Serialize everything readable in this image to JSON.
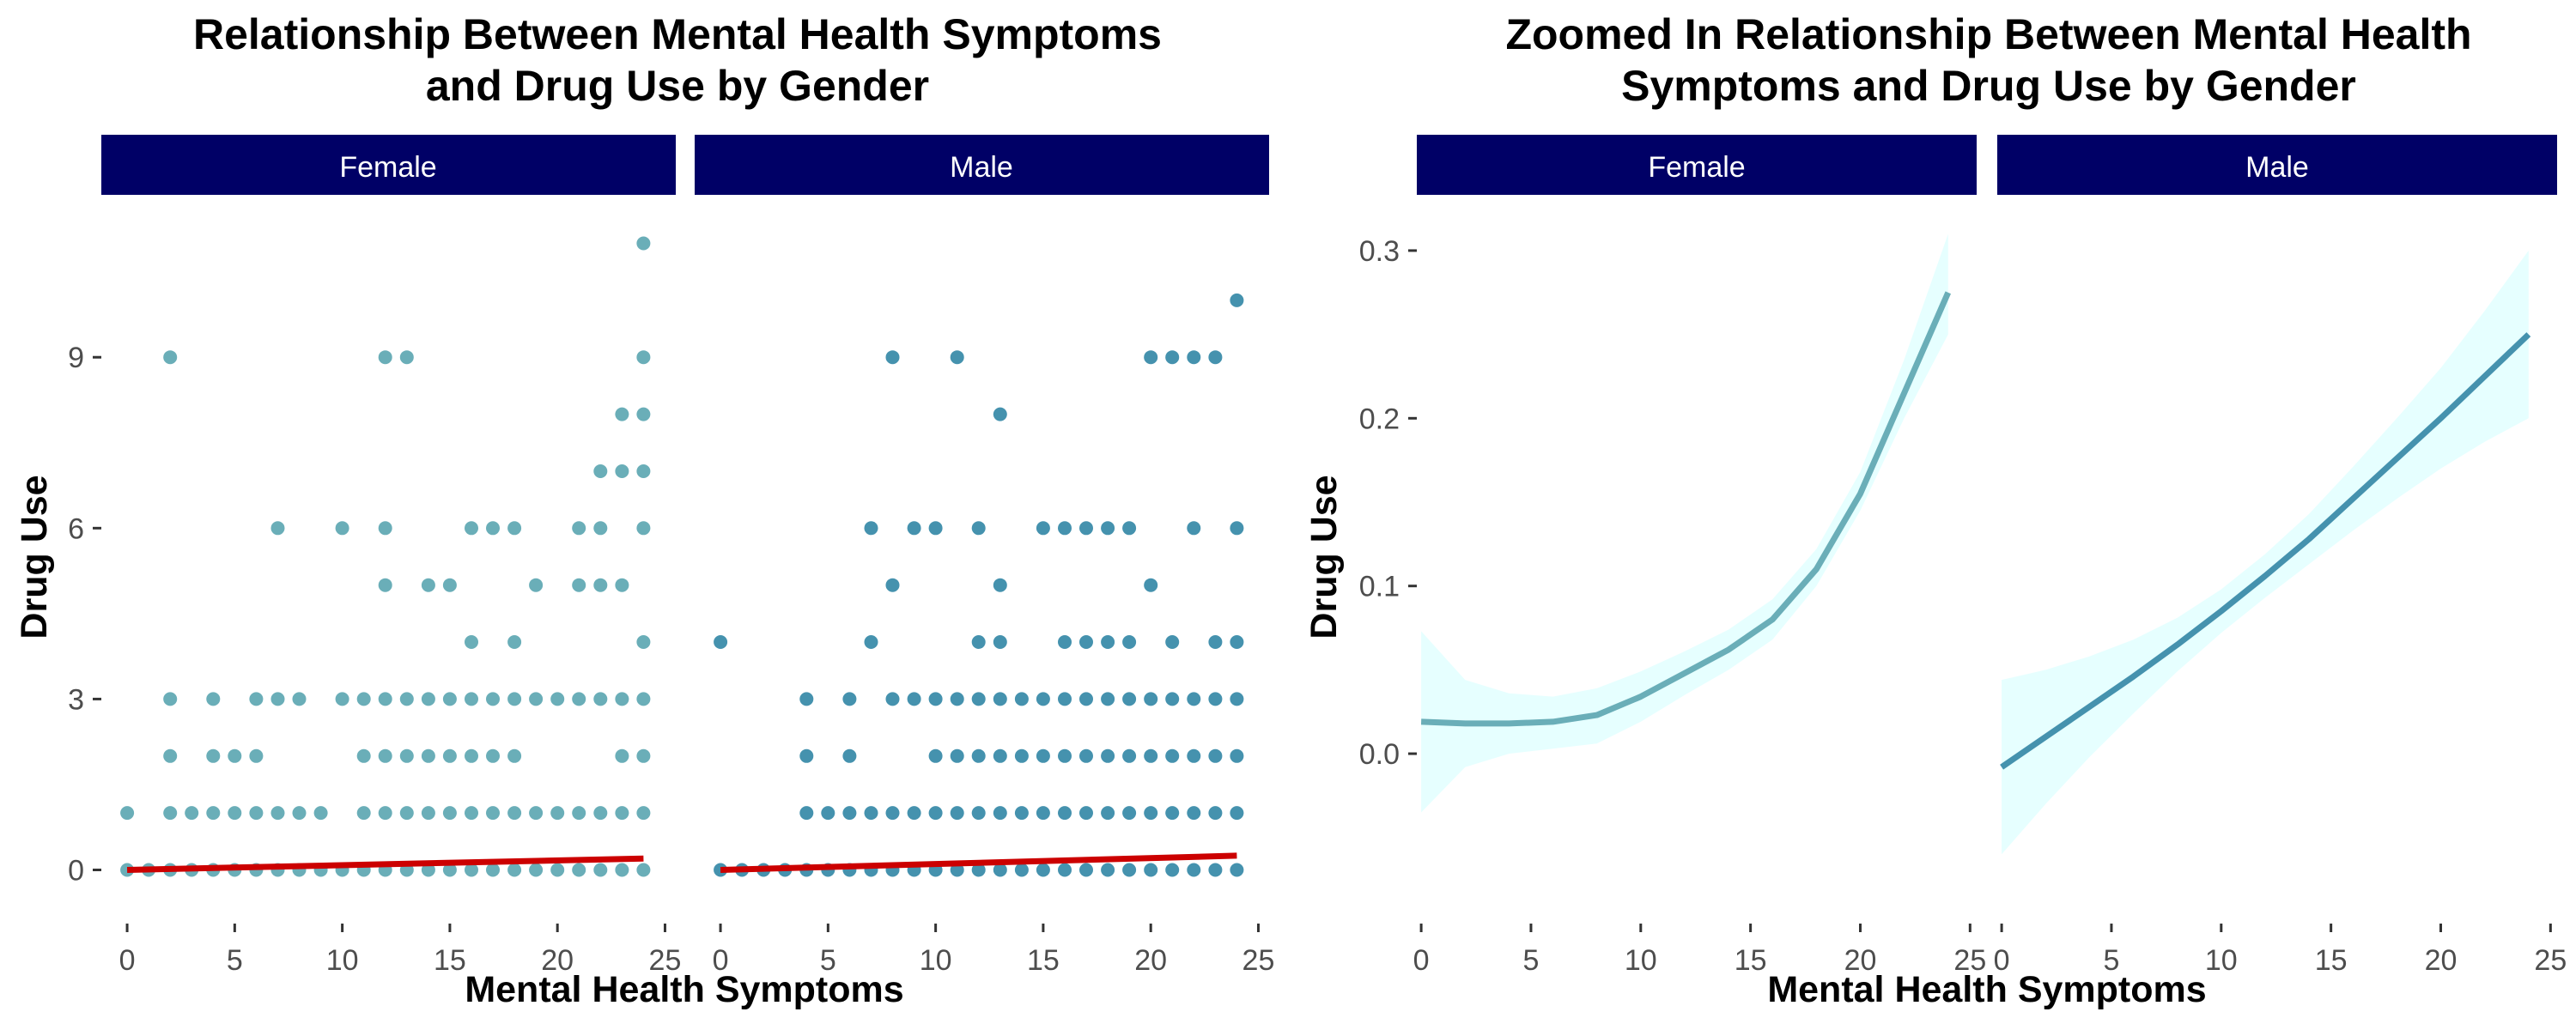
{
  "chart_data": [
    {
      "type": "scatter",
      "title_lines": [
        "Relationship Between Mental Health Symptoms",
        "and Drug Use by Gender"
      ],
      "xlabel": "Mental Health Symptoms",
      "ylabel": "Drug Use",
      "xlim": [
        -1.2,
        25.5
      ],
      "ylim": [
        -0.55,
        11.55
      ],
      "x_ticks": [
        0,
        5,
        10,
        15,
        20,
        25
      ],
      "y_ticks": [
        0,
        3,
        6,
        9
      ],
      "grid": false,
      "legend": "none",
      "facets": [
        {
          "label": "Female",
          "point_color": "#6aaeb8",
          "trend": {
            "color": "#cc0000",
            "x": [
              0,
              24
            ],
            "y": [
              0.0,
              0.2
            ]
          },
          "points": [
            [
              0,
              0
            ],
            [
              0,
              1
            ],
            [
              1,
              0
            ],
            [
              2,
              0
            ],
            [
              2,
              1
            ],
            [
              2,
              2
            ],
            [
              2,
              3
            ],
            [
              2,
              9
            ],
            [
              3,
              0
            ],
            [
              3,
              1
            ],
            [
              4,
              0
            ],
            [
              4,
              1
            ],
            [
              4,
              2
            ],
            [
              4,
              3
            ],
            [
              5,
              0
            ],
            [
              5,
              1
            ],
            [
              5,
              2
            ],
            [
              6,
              0
            ],
            [
              6,
              1
            ],
            [
              6,
              2
            ],
            [
              6,
              3
            ],
            [
              7,
              0
            ],
            [
              7,
              1
            ],
            [
              7,
              3
            ],
            [
              7,
              6
            ],
            [
              8,
              0
            ],
            [
              8,
              1
            ],
            [
              8,
              3
            ],
            [
              9,
              0
            ],
            [
              9,
              1
            ],
            [
              10,
              0
            ],
            [
              10,
              3
            ],
            [
              10,
              6
            ],
            [
              11,
              0
            ],
            [
              11,
              1
            ],
            [
              11,
              2
            ],
            [
              11,
              3
            ],
            [
              12,
              0
            ],
            [
              12,
              1
            ],
            [
              12,
              2
            ],
            [
              12,
              3
            ],
            [
              12,
              5
            ],
            [
              12,
              6
            ],
            [
              12,
              9
            ],
            [
              13,
              0
            ],
            [
              13,
              1
            ],
            [
              13,
              2
            ],
            [
              13,
              3
            ],
            [
              13,
              9
            ],
            [
              14,
              0
            ],
            [
              14,
              1
            ],
            [
              14,
              2
            ],
            [
              14,
              3
            ],
            [
              14,
              5
            ],
            [
              15,
              0
            ],
            [
              15,
              1
            ],
            [
              15,
              2
            ],
            [
              15,
              3
            ],
            [
              15,
              5
            ],
            [
              16,
              0
            ],
            [
              16,
              1
            ],
            [
              16,
              2
            ],
            [
              16,
              3
            ],
            [
              16,
              4
            ],
            [
              16,
              6
            ],
            [
              17,
              0
            ],
            [
              17,
              1
            ],
            [
              17,
              2
            ],
            [
              17,
              3
            ],
            [
              17,
              6
            ],
            [
              18,
              0
            ],
            [
              18,
              1
            ],
            [
              18,
              2
            ],
            [
              18,
              3
            ],
            [
              18,
              4
            ],
            [
              18,
              6
            ],
            [
              19,
              0
            ],
            [
              19,
              1
            ],
            [
              19,
              3
            ],
            [
              19,
              5
            ],
            [
              20,
              0
            ],
            [
              20,
              1
            ],
            [
              20,
              3
            ],
            [
              21,
              0
            ],
            [
              21,
              1
            ],
            [
              21,
              3
            ],
            [
              21,
              5
            ],
            [
              21,
              6
            ],
            [
              22,
              0
            ],
            [
              22,
              1
            ],
            [
              22,
              3
            ],
            [
              22,
              5
            ],
            [
              22,
              6
            ],
            [
              22,
              7
            ],
            [
              23,
              0
            ],
            [
              23,
              1
            ],
            [
              23,
              2
            ],
            [
              23,
              3
            ],
            [
              23,
              5
            ],
            [
              23,
              7
            ],
            [
              23,
              8
            ],
            [
              24,
              0
            ],
            [
              24,
              1
            ],
            [
              24,
              2
            ],
            [
              24,
              3
            ],
            [
              24,
              4
            ],
            [
              24,
              6
            ],
            [
              24,
              7
            ],
            [
              24,
              8
            ],
            [
              24,
              9
            ],
            [
              24,
              11
            ]
          ]
        },
        {
          "label": "Male",
          "point_color": "#4592ae",
          "trend": {
            "color": "#cc0000",
            "x": [
              0,
              24
            ],
            "y": [
              0.0,
              0.25
            ]
          },
          "points": [
            [
              0,
              0
            ],
            [
              0,
              4
            ],
            [
              1,
              0
            ],
            [
              2,
              0
            ],
            [
              3,
              0
            ],
            [
              4,
              0
            ],
            [
              4,
              1
            ],
            [
              4,
              2
            ],
            [
              4,
              3
            ],
            [
              5,
              0
            ],
            [
              5,
              1
            ],
            [
              6,
              0
            ],
            [
              6,
              1
            ],
            [
              6,
              2
            ],
            [
              6,
              3
            ],
            [
              7,
              0
            ],
            [
              7,
              1
            ],
            [
              7,
              4
            ],
            [
              7,
              6
            ],
            [
              8,
              0
            ],
            [
              8,
              1
            ],
            [
              8,
              3
            ],
            [
              8,
              5
            ],
            [
              8,
              9
            ],
            [
              9,
              0
            ],
            [
              9,
              1
            ],
            [
              9,
              3
            ],
            [
              9,
              6
            ],
            [
              10,
              0
            ],
            [
              10,
              1
            ],
            [
              10,
              2
            ],
            [
              10,
              3
            ],
            [
              10,
              6
            ],
            [
              11,
              0
            ],
            [
              11,
              1
            ],
            [
              11,
              2
            ],
            [
              11,
              3
            ],
            [
              11,
              9
            ],
            [
              12,
              0
            ],
            [
              12,
              1
            ],
            [
              12,
              2
            ],
            [
              12,
              3
            ],
            [
              12,
              4
            ],
            [
              12,
              6
            ],
            [
              13,
              0
            ],
            [
              13,
              1
            ],
            [
              13,
              2
            ],
            [
              13,
              3
            ],
            [
              13,
              4
            ],
            [
              13,
              5
            ],
            [
              13,
              8
            ],
            [
              14,
              0
            ],
            [
              14,
              1
            ],
            [
              14,
              2
            ],
            [
              14,
              3
            ],
            [
              15,
              0
            ],
            [
              15,
              1
            ],
            [
              15,
              2
            ],
            [
              15,
              3
            ],
            [
              15,
              6
            ],
            [
              16,
              0
            ],
            [
              16,
              1
            ],
            [
              16,
              2
            ],
            [
              16,
              3
            ],
            [
              16,
              4
            ],
            [
              16,
              6
            ],
            [
              17,
              0
            ],
            [
              17,
              1
            ],
            [
              17,
              2
            ],
            [
              17,
              3
            ],
            [
              17,
              4
            ],
            [
              17,
              6
            ],
            [
              18,
              0
            ],
            [
              18,
              1
            ],
            [
              18,
              2
            ],
            [
              18,
              3
            ],
            [
              18,
              4
            ],
            [
              18,
              6
            ],
            [
              19,
              0
            ],
            [
              19,
              1
            ],
            [
              19,
              2
            ],
            [
              19,
              3
            ],
            [
              19,
              4
            ],
            [
              19,
              6
            ],
            [
              20,
              0
            ],
            [
              20,
              1
            ],
            [
              20,
              2
            ],
            [
              20,
              3
            ],
            [
              20,
              5
            ],
            [
              20,
              9
            ],
            [
              21,
              0
            ],
            [
              21,
              1
            ],
            [
              21,
              2
            ],
            [
              21,
              3
            ],
            [
              21,
              4
            ],
            [
              21,
              9
            ],
            [
              22,
              0
            ],
            [
              22,
              1
            ],
            [
              22,
              2
            ],
            [
              22,
              3
            ],
            [
              22,
              6
            ],
            [
              22,
              9
            ],
            [
              23,
              0
            ],
            [
              23,
              1
            ],
            [
              23,
              2
            ],
            [
              23,
              3
            ],
            [
              23,
              4
            ],
            [
              23,
              9
            ],
            [
              24,
              0
            ],
            [
              24,
              1
            ],
            [
              24,
              2
            ],
            [
              24,
              3
            ],
            [
              24,
              4
            ],
            [
              24,
              6
            ],
            [
              24,
              10
            ]
          ]
        }
      ]
    },
    {
      "type": "line",
      "title_lines": [
        "Zoomed In Relationship Between Mental Health",
        "Symptoms and Drug Use by Gender"
      ],
      "xlabel": "Mental Health Symptoms",
      "ylabel": "Drug Use",
      "xlim": [
        -0.2,
        25.3
      ],
      "ylim": [
        -0.088,
        0.323
      ],
      "x_ticks": [
        0,
        5,
        10,
        15,
        20,
        25
      ],
      "y_ticks": [
        0.0,
        0.1,
        0.2,
        0.3
      ],
      "y_tick_labels": [
        "0.0",
        "0.1",
        "0.2",
        "0.3"
      ],
      "grid": false,
      "legend": "none",
      "ribbon_color": "#e6ffff",
      "facets": [
        {
          "label": "Female",
          "line_color": "#6aaeb8",
          "x": [
            0,
            2,
            4,
            6,
            8,
            10,
            12,
            14,
            16,
            18,
            20,
            22,
            24
          ],
          "y": [
            0.019,
            0.018,
            0.018,
            0.019,
            0.023,
            0.034,
            0.048,
            0.062,
            0.08,
            0.11,
            0.155,
            0.215,
            0.275
          ],
          "lower": [
            -0.035,
            -0.008,
            0.0,
            0.003,
            0.006,
            0.019,
            0.035,
            0.05,
            0.068,
            0.1,
            0.145,
            0.2,
            0.25
          ],
          "upper": [
            0.073,
            0.044,
            0.036,
            0.034,
            0.039,
            0.049,
            0.061,
            0.074,
            0.092,
            0.122,
            0.168,
            0.235,
            0.31
          ]
        },
        {
          "label": "Male",
          "line_color": "#4592ae",
          "x": [
            0,
            2,
            4,
            6,
            8,
            10,
            12,
            14,
            16,
            18,
            20,
            22,
            24
          ],
          "y": [
            -0.008,
            0.01,
            0.028,
            0.046,
            0.065,
            0.085,
            0.106,
            0.128,
            0.152,
            0.176,
            0.2,
            0.225,
            0.25
          ],
          "lower": [
            -0.06,
            -0.03,
            -0.002,
            0.024,
            0.049,
            0.072,
            0.093,
            0.113,
            0.133,
            0.152,
            0.17,
            0.186,
            0.2
          ],
          "upper": [
            0.044,
            0.05,
            0.058,
            0.068,
            0.081,
            0.098,
            0.119,
            0.143,
            0.171,
            0.2,
            0.23,
            0.264,
            0.3
          ]
        }
      ]
    }
  ],
  "strip_color": "#000066"
}
